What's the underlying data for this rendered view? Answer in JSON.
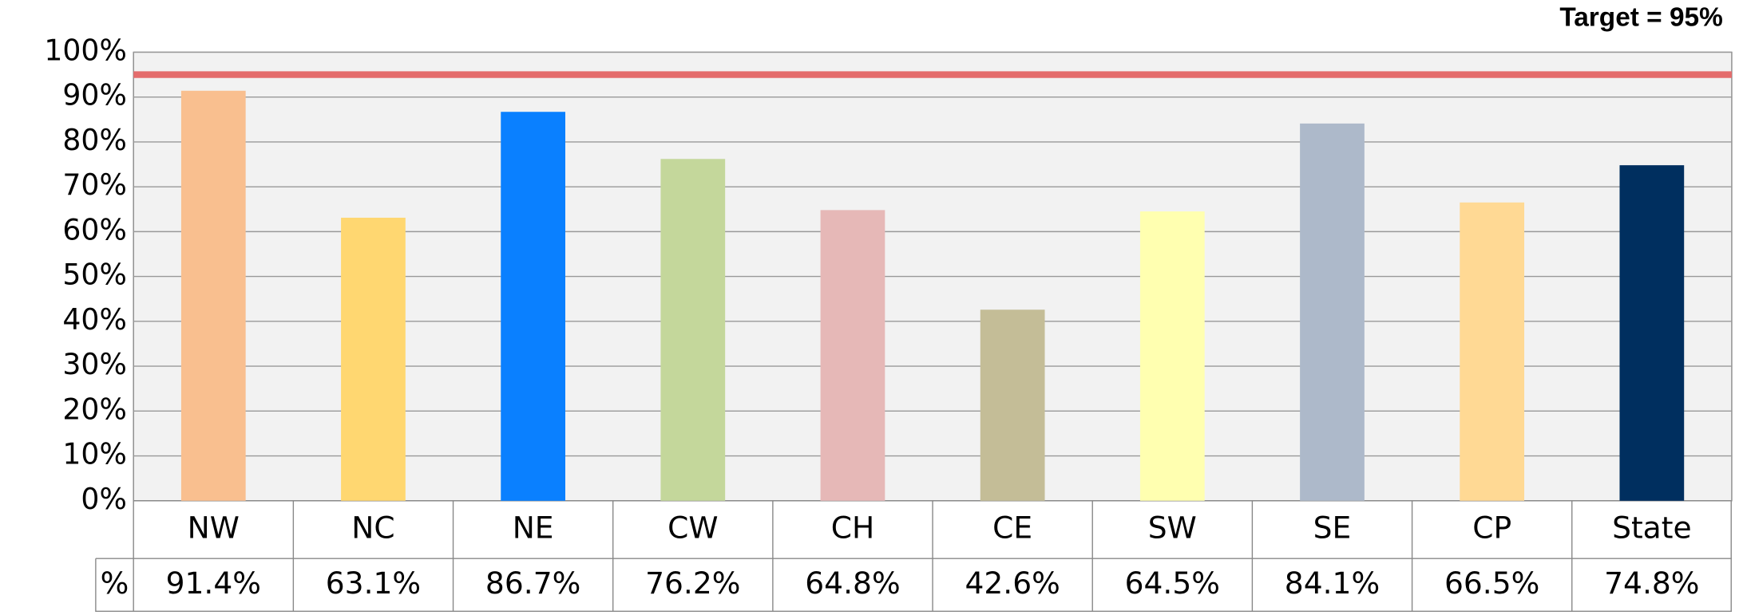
{
  "chart_data": {
    "type": "bar",
    "annotation": "Target = 95%",
    "target": 95,
    "target_color": "#e46c6c",
    "categories": [
      "NW",
      "NC",
      "NE",
      "CW",
      "CH",
      "CE",
      "SW",
      "SE",
      "CP",
      "State"
    ],
    "values": [
      91.4,
      63.1,
      86.7,
      76.2,
      64.8,
      42.6,
      64.5,
      84.1,
      66.5,
      74.8
    ],
    "value_labels": [
      "91.4%",
      "63.1%",
      "86.7%",
      "76.2%",
      "64.8%",
      "42.6%",
      "64.5%",
      "84.1%",
      "66.5%",
      "74.8%"
    ],
    "colors": [
      "#f9bf8f",
      "#ffd771",
      "#0a80ff",
      "#c4d79b",
      "#e6b8b7",
      "#c4bd97",
      "#ffffb0",
      "#adb9ca",
      "#ffd994",
      "#002f5f"
    ],
    "table_row_label": "%",
    "ylim": [
      0,
      100
    ],
    "yticks": [
      {
        "value": 0,
        "label": "0%"
      },
      {
        "value": 10,
        "label": "10%"
      },
      {
        "value": 20,
        "label": "20%"
      },
      {
        "value": 30,
        "label": "30%"
      },
      {
        "value": 40,
        "label": "40%"
      },
      {
        "value": 50,
        "label": "50%"
      },
      {
        "value": 60,
        "label": "60%"
      },
      {
        "value": 70,
        "label": "70%"
      },
      {
        "value": 80,
        "label": "80%"
      },
      {
        "value": 90,
        "label": "90%"
      },
      {
        "value": 100,
        "label": "100%"
      }
    ],
    "grid": true
  }
}
